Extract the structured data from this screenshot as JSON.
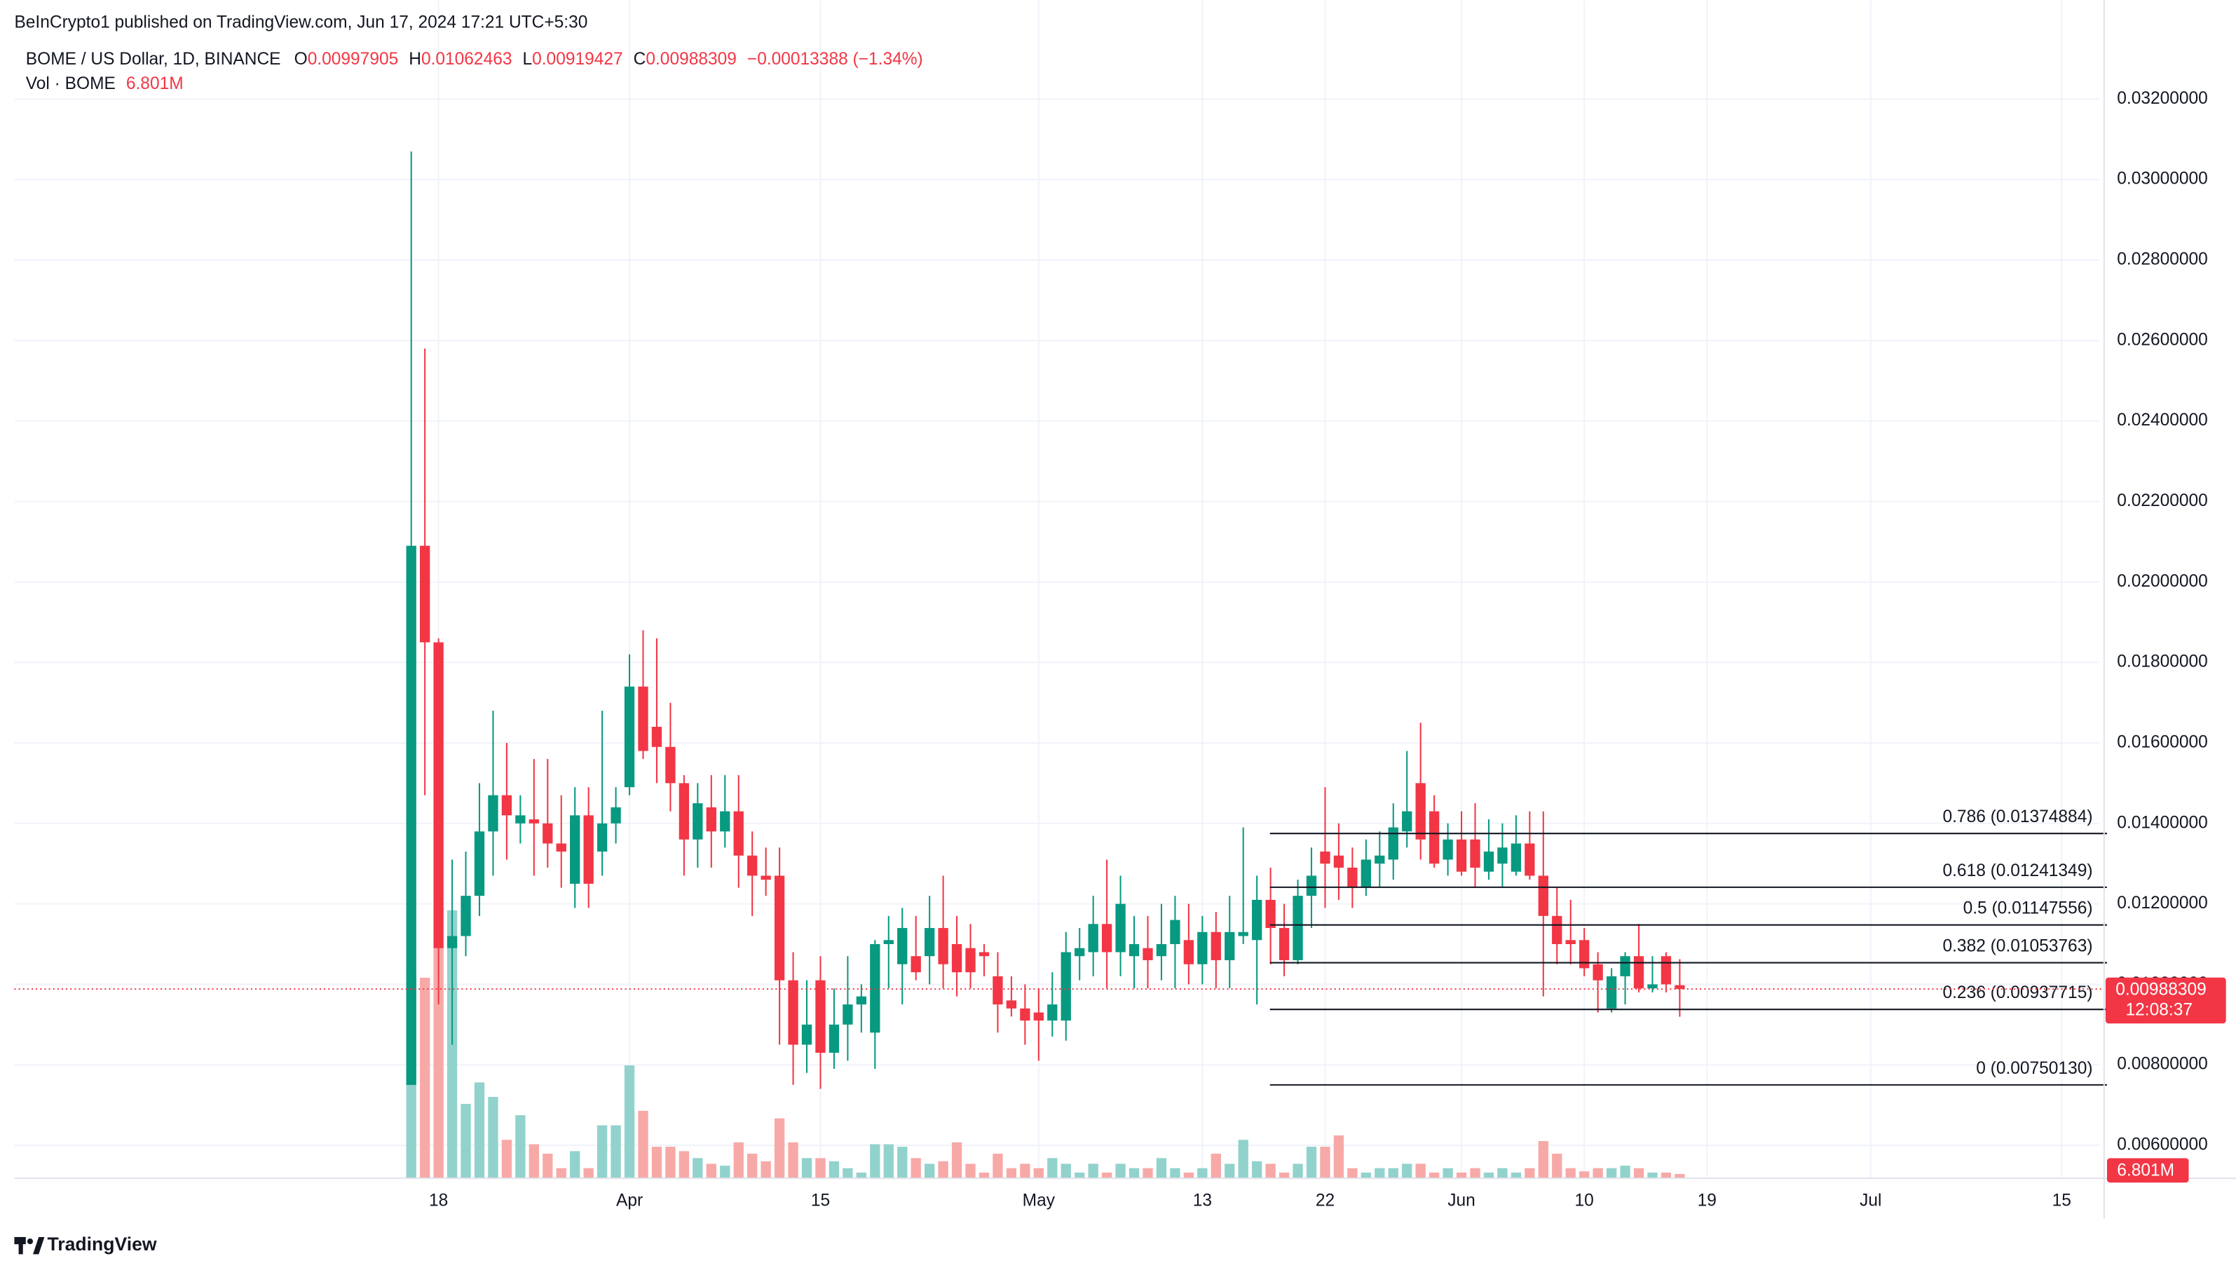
{
  "chart_data": {
    "type": "candlestick",
    "published": "BeInCrypto1 published on TradingView.com, Jun 17, 2024 17:21 UTC+5:30",
    "title": "BOME / US Dollar, 1D, BINANCE",
    "ohlc_labels": [
      "O",
      "H",
      "L",
      "C"
    ],
    "change": "−0.00013388 (−1.34%)",
    "volume_title": "Vol · BOME",
    "last_volume_label": "6.801M",
    "countdown": "12:08:37",
    "brand": "TradingView",
    "up_color": "#089981",
    "down_color": "#f23645",
    "up_volume_color": "#92d2cc",
    "down_volume_color": "#f7a9a7",
    "grid": true,
    "open": [
      0.0075,
      0.0209,
      0.0185,
      0.0109,
      0.0112,
      0.0122,
      0.0138,
      0.0147,
      0.014,
      0.0141,
      0.014,
      0.0135,
      0.0125,
      0.0142,
      0.0133,
      0.014,
      0.0149,
      0.0174,
      0.0164,
      0.0159,
      0.015,
      0.0136,
      0.0144,
      0.0138,
      0.0143,
      0.0132,
      0.0127,
      0.0127,
      0.0101,
      0.0085,
      0.0101,
      0.0083,
      0.009,
      0.0095,
      0.0088,
      0.011,
      0.0105,
      0.0107,
      0.0107,
      0.0114,
      0.011,
      0.0109,
      0.0108,
      0.0102,
      0.0096,
      0.0094,
      0.0093,
      0.0091,
      0.0091,
      0.0107,
      0.0108,
      0.0115,
      0.0108,
      0.0107,
      0.0109,
      0.0107,
      0.011,
      0.0111,
      0.0105,
      0.0113,
      0.0106,
      0.0112,
      0.0111,
      0.0121,
      0.0114,
      0.0106,
      0.0122,
      0.0133,
      0.0132,
      0.0129,
      0.0124,
      0.013,
      0.0131,
      0.0138,
      0.015,
      0.0143,
      0.0131,
      0.0136,
      0.0136,
      0.0128,
      0.013,
      0.0128,
      0.0135,
      0.0127,
      0.0117,
      0.0111,
      0.0111,
      0.0105,
      0.0094,
      0.0102,
      0.0107,
      0.0099,
      0.0107,
      0.00997905
    ],
    "high": [
      0.0307,
      0.0258,
      0.0186,
      0.0131,
      0.0133,
      0.015,
      0.0168,
      0.016,
      0.0147,
      0.0156,
      0.0156,
      0.0147,
      0.0149,
      0.0149,
      0.0168,
      0.0149,
      0.0182,
      0.0188,
      0.0186,
      0.017,
      0.0152,
      0.015,
      0.0152,
      0.0152,
      0.0152,
      0.0138,
      0.0134,
      0.0134,
      0.0108,
      0.0101,
      0.0107,
      0.0099,
      0.0107,
      0.01,
      0.0111,
      0.0117,
      0.0119,
      0.0117,
      0.0122,
      0.0127,
      0.0117,
      0.0115,
      0.011,
      0.0108,
      0.0102,
      0.01,
      0.0099,
      0.0103,
      0.0113,
      0.0114,
      0.0122,
      0.0131,
      0.0127,
      0.0117,
      0.0117,
      0.012,
      0.0122,
      0.012,
      0.0117,
      0.0118,
      0.0122,
      0.0139,
      0.0127,
      0.0129,
      0.012,
      0.0126,
      0.0134,
      0.0149,
      0.014,
      0.0134,
      0.0136,
      0.0138,
      0.0145,
      0.0158,
      0.0165,
      0.0147,
      0.014,
      0.0143,
      0.0145,
      0.0141,
      0.014,
      0.0142,
      0.0143,
      0.0143,
      0.0124,
      0.0121,
      0.0114,
      0.0108,
      0.0104,
      0.0108,
      0.0115,
      0.0107,
      0.0108,
      0.01062463
    ],
    "low": [
      0.0075,
      0.0147,
      0.0095,
      0.0085,
      0.0107,
      0.0117,
      0.0127,
      0.0131,
      0.0135,
      0.0127,
      0.0129,
      0.0124,
      0.0119,
      0.0119,
      0.0127,
      0.0135,
      0.0147,
      0.0156,
      0.015,
      0.0143,
      0.0127,
      0.0129,
      0.0129,
      0.0134,
      0.0124,
      0.0117,
      0.0122,
      0.0085,
      0.0075,
      0.0078,
      0.0074,
      0.0079,
      0.0081,
      0.0088,
      0.0079,
      0.0099,
      0.0095,
      0.0101,
      0.01,
      0.0099,
      0.0097,
      0.0099,
      0.0102,
      0.0088,
      0.0092,
      0.0085,
      0.0081,
      0.0087,
      0.0086,
      0.0101,
      0.0102,
      0.0099,
      0.0102,
      0.0099,
      0.0099,
      0.0101,
      0.0099,
      0.01,
      0.01,
      0.0099,
      0.0099,
      0.011,
      0.0095,
      0.0105,
      0.0102,
      0.0105,
      0.0114,
      0.0119,
      0.0121,
      0.0119,
      0.0122,
      0.0124,
      0.0126,
      0.0134,
      0.0131,
      0.0129,
      0.0127,
      0.0127,
      0.0124,
      0.0126,
      0.0124,
      0.0127,
      0.0126,
      0.0097,
      0.0105,
      0.0105,
      0.0102,
      0.0093,
      0.0093,
      0.0095,
      0.0098,
      0.0098,
      0.0098,
      0.00919427
    ],
    "close": [
      0.0209,
      0.0185,
      0.0109,
      0.0112,
      0.0122,
      0.0138,
      0.0147,
      0.0142,
      0.0142,
      0.014,
      0.0135,
      0.0133,
      0.0142,
      0.0125,
      0.014,
      0.0144,
      0.0174,
      0.0158,
      0.0159,
      0.015,
      0.0136,
      0.0145,
      0.0138,
      0.0143,
      0.0132,
      0.0127,
      0.0126,
      0.0101,
      0.0085,
      0.009,
      0.0083,
      0.009,
      0.0095,
      0.0097,
      0.011,
      0.0111,
      0.0114,
      0.0103,
      0.0114,
      0.0105,
      0.0103,
      0.0103,
      0.0107,
      0.0095,
      0.0094,
      0.0091,
      0.0091,
      0.0095,
      0.0108,
      0.0109,
      0.0115,
      0.0108,
      0.012,
      0.011,
      0.0106,
      0.011,
      0.0116,
      0.0105,
      0.0113,
      0.0106,
      0.0113,
      0.0113,
      0.0121,
      0.0114,
      0.0106,
      0.0122,
      0.0127,
      0.013,
      0.0129,
      0.0124,
      0.0131,
      0.0132,
      0.0139,
      0.0143,
      0.0136,
      0.013,
      0.0136,
      0.0128,
      0.0129,
      0.0133,
      0.0134,
      0.0135,
      0.0127,
      0.0117,
      0.011,
      0.011,
      0.0104,
      0.0101,
      0.0102,
      0.0107,
      0.0099,
      0.01,
      0.01,
      0.00988309
    ],
    "volume": [
      330,
      318,
      368,
      425,
      118,
      152,
      129,
      61,
      100,
      54,
      39,
      16,
      43,
      16,
      84,
      84,
      179,
      107,
      50,
      50,
      43,
      32,
      23,
      20,
      57,
      39,
      27,
      95,
      57,
      32,
      32,
      27,
      16,
      9,
      54,
      54,
      50,
      32,
      23,
      27,
      57,
      23,
      9,
      39,
      16,
      23,
      16,
      32,
      23,
      9,
      23,
      9,
      23,
      16,
      16,
      32,
      16,
      9,
      16,
      39,
      23,
      61,
      27,
      23,
      9,
      23,
      50,
      50,
      68,
      16,
      9,
      16,
      16,
      23,
      23,
      9,
      16,
      9,
      16,
      9,
      16,
      9,
      16,
      59,
      39,
      16,
      11,
      16,
      16,
      20,
      16,
      9,
      9,
      6.801
    ],
    "xlim": [
      -29.1,
      123.8
    ],
    "xticks": [
      {
        "value": 2,
        "label": "18"
      },
      {
        "value": 16,
        "label": "Apr"
      },
      {
        "value": 30,
        "label": "15"
      },
      {
        "value": 46,
        "label": "May"
      },
      {
        "value": 58,
        "label": "13"
      },
      {
        "value": 67,
        "label": "22"
      },
      {
        "value": 77,
        "label": "Jun"
      },
      {
        "value": 86,
        "label": "10"
      },
      {
        "value": 95,
        "label": "19"
      },
      {
        "value": 107,
        "label": "Jul"
      },
      {
        "value": 121,
        "label": "15"
      }
    ],
    "ylim": [
      0.00518,
      0.03446
    ],
    "yticks": [
      {
        "value": 0.006,
        "label": "0.00600000"
      },
      {
        "value": 0.008,
        "label": "0.00800000"
      },
      {
        "value": 0.01,
        "label": "0.01000000"
      },
      {
        "value": 0.012,
        "label": "0.01200000"
      },
      {
        "value": 0.014,
        "label": "0.01400000"
      },
      {
        "value": 0.016,
        "label": "0.01600000"
      },
      {
        "value": 0.018,
        "label": "0.01800000"
      },
      {
        "value": 0.02,
        "label": "0.02000000"
      },
      {
        "value": 0.022,
        "label": "0.02200000"
      },
      {
        "value": 0.024,
        "label": "0.02400000"
      },
      {
        "value": 0.026,
        "label": "0.02600000"
      },
      {
        "value": 0.028,
        "label": "0.02800000"
      },
      {
        "value": 0.03,
        "label": "0.03000000"
      },
      {
        "value": 0.032,
        "label": "0.03200000"
      }
    ],
    "fib_levels": [
      {
        "label": "0.786 (0.01374884)",
        "value": 0.01374884
      },
      {
        "label": "0.618 (0.01241349)",
        "value": 0.01241349
      },
      {
        "label": "0.5 (0.01147556)",
        "value": 0.01147556
      },
      {
        "label": "0.382 (0.01053763)",
        "value": 0.01053763
      },
      {
        "label": "0.236 (0.00937715)",
        "value": 0.00937715
      },
      {
        "label": "0 (0.00750130)",
        "value": 0.0075013
      }
    ]
  }
}
